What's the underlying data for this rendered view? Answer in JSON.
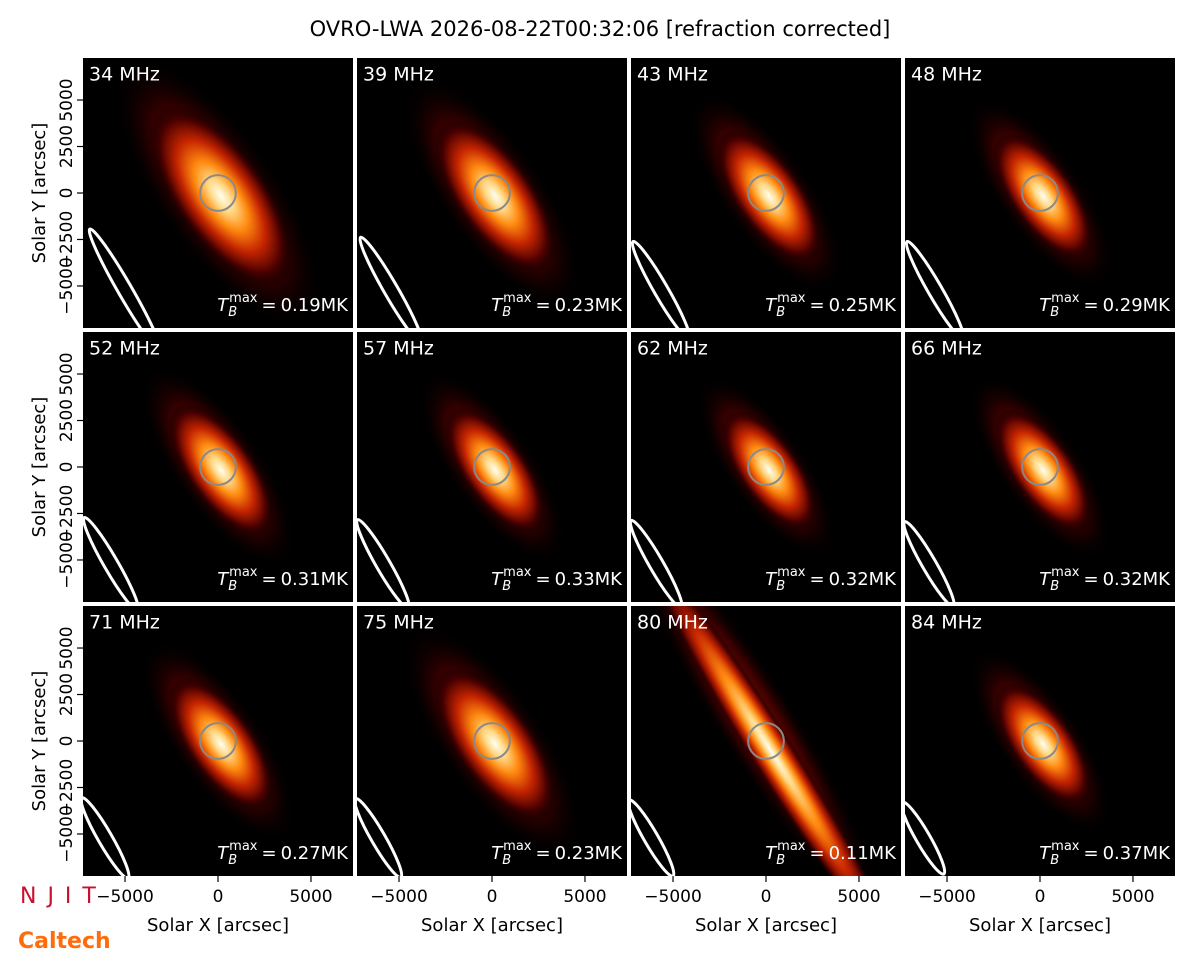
{
  "title": "OVRO-LWA 2026-08-22T00:32:06 [refraction corrected]",
  "tmax_symbol": {
    "base": "T",
    "sub": "B",
    "sup": "max",
    "equals": "="
  },
  "logos": [
    "N J I T",
    "Caltech"
  ],
  "chart_data": [
    {
      "type": "image",
      "title": "34 MHz",
      "tmax": "0.19MK",
      "xlim": [
        -7260,
        7260
      ],
      "ylim": [
        -7260,
        7260
      ],
      "ylabel": "Solar Y [arcsec]",
      "yticks": [
        {
          "value": -5000,
          "label": "−5000"
        },
        {
          "value": -2500,
          "label": "−2500"
        },
        0,
        2500,
        5000
      ]
    },
    {
      "type": "image",
      "title": "39 MHz",
      "tmax": "0.23MK",
      "xlim": [
        -7260,
        7260
      ],
      "ylim": [
        -7260,
        7260
      ]
    },
    {
      "type": "image",
      "title": "43 MHz",
      "tmax": "0.25MK",
      "xlim": [
        -7260,
        7260
      ],
      "ylim": [
        -7260,
        7260
      ]
    },
    {
      "type": "image",
      "title": "48 MHz",
      "tmax": "0.29MK",
      "xlim": [
        -7260,
        7260
      ],
      "ylim": [
        -7260,
        7260
      ]
    },
    {
      "type": "image",
      "title": "52 MHz",
      "tmax": "0.31MK",
      "xlim": [
        -7260,
        7260
      ],
      "ylim": [
        -7260,
        7260
      ],
      "ylabel": "Solar Y [arcsec]",
      "yticks": [
        {
          "value": -5000,
          "label": "−5000"
        },
        {
          "value": -2500,
          "label": "−2500"
        },
        0,
        2500,
        5000
      ]
    },
    {
      "type": "image",
      "title": "57 MHz",
      "tmax": "0.33MK",
      "xlim": [
        -7260,
        7260
      ],
      "ylim": [
        -7260,
        7260
      ]
    },
    {
      "type": "image",
      "title": "62 MHz",
      "tmax": "0.32MK",
      "xlim": [
        -7260,
        7260
      ],
      "ylim": [
        -7260,
        7260
      ]
    },
    {
      "type": "image",
      "title": "66 MHz",
      "tmax": "0.32MK",
      "xlim": [
        -7260,
        7260
      ],
      "ylim": [
        -7260,
        7260
      ]
    },
    {
      "type": "image",
      "title": "71 MHz",
      "tmax": "0.27MK",
      "xlim": [
        -7260,
        7260
      ],
      "ylim": [
        -7260,
        7260
      ],
      "ylabel": "Solar Y [arcsec]",
      "yticks": [
        {
          "value": -5000,
          "label": "−5000"
        },
        {
          "value": -2500,
          "label": "−2500"
        },
        0,
        2500,
        5000
      ],
      "xlabel": "Solar X [arcsec]",
      "xticks": [
        {
          "value": -5000,
          "label": "−5000"
        },
        0,
        5000
      ]
    },
    {
      "type": "image",
      "title": "75 MHz",
      "tmax": "0.23MK",
      "xlim": [
        -7260,
        7260
      ],
      "ylim": [
        -7260,
        7260
      ],
      "xlabel": "Solar X [arcsec]",
      "xticks": [
        {
          "value": -5000,
          "label": "−5000"
        },
        0,
        5000
      ]
    },
    {
      "type": "image",
      "title": "80 MHz",
      "tmax": "0.11MK",
      "xlim": [
        -7260,
        7260
      ],
      "ylim": [
        -7260,
        7260
      ],
      "xlabel": "Solar X [arcsec]",
      "xticks": [
        {
          "value": -5000,
          "label": "−5000"
        },
        0,
        5000
      ]
    },
    {
      "type": "image",
      "title": "84 MHz",
      "tmax": "0.37MK",
      "xlim": [
        -7260,
        7260
      ],
      "ylim": [
        -7260,
        7260
      ],
      "xlabel": "Solar X [arcsec]",
      "xticks": [
        {
          "value": -5000,
          "label": "−5000"
        },
        0,
        5000
      ]
    }
  ]
}
